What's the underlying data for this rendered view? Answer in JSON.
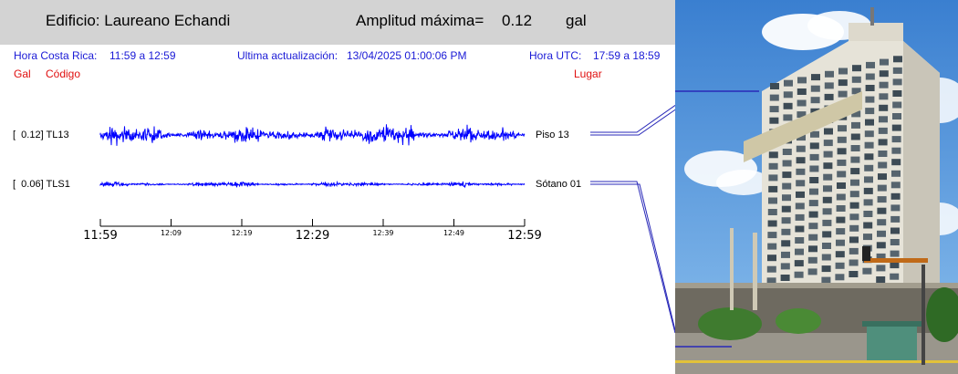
{
  "header": {
    "building_label": "Edificio: Laureano Echandi",
    "amplitude_label": "Amplitud máxima=",
    "amplitude_value": "0.12",
    "amplitude_unit": "gal"
  },
  "info": {
    "cr_time_label": "Hora Costa Rica:",
    "cr_time_value": "11:59 a 12:59",
    "update_label": "Ultima actualización:",
    "update_value": "13/04/2025 01:00:06 PM",
    "utc_label": "Hora UTC:",
    "utc_value": "17:59 a 18:59",
    "col_gal": "Gal",
    "col_code": "Código",
    "col_place": "Lugar"
  },
  "colors": {
    "trace": "#0000ff",
    "header_bg": "#d3d3d3",
    "info_text": "#1a1ad6",
    "column_text": "#e01010"
  },
  "chart_data": {
    "type": "line",
    "title": "",
    "xlabel": "",
    "ylabel": "",
    "x_start": "11:59",
    "x_end": "12:59",
    "series": [
      {
        "amplitude": "0.12",
        "code": "TL13",
        "place": "Piso 13",
        "peak_gal": 0.12
      },
      {
        "amplitude": "0.06",
        "code": "TLS1",
        "place": "Sótano 01",
        "peak_gal": 0.06
      }
    ],
    "major_ticks": [
      "11:59",
      "12:29",
      "12:59"
    ],
    "minor_ticks": [
      "12:09",
      "12:19",
      "12:39",
      "12:49"
    ]
  },
  "photo": {
    "icon": "building-photo",
    "sky": "#4a8fd8",
    "facade": "#e8e6dc"
  }
}
